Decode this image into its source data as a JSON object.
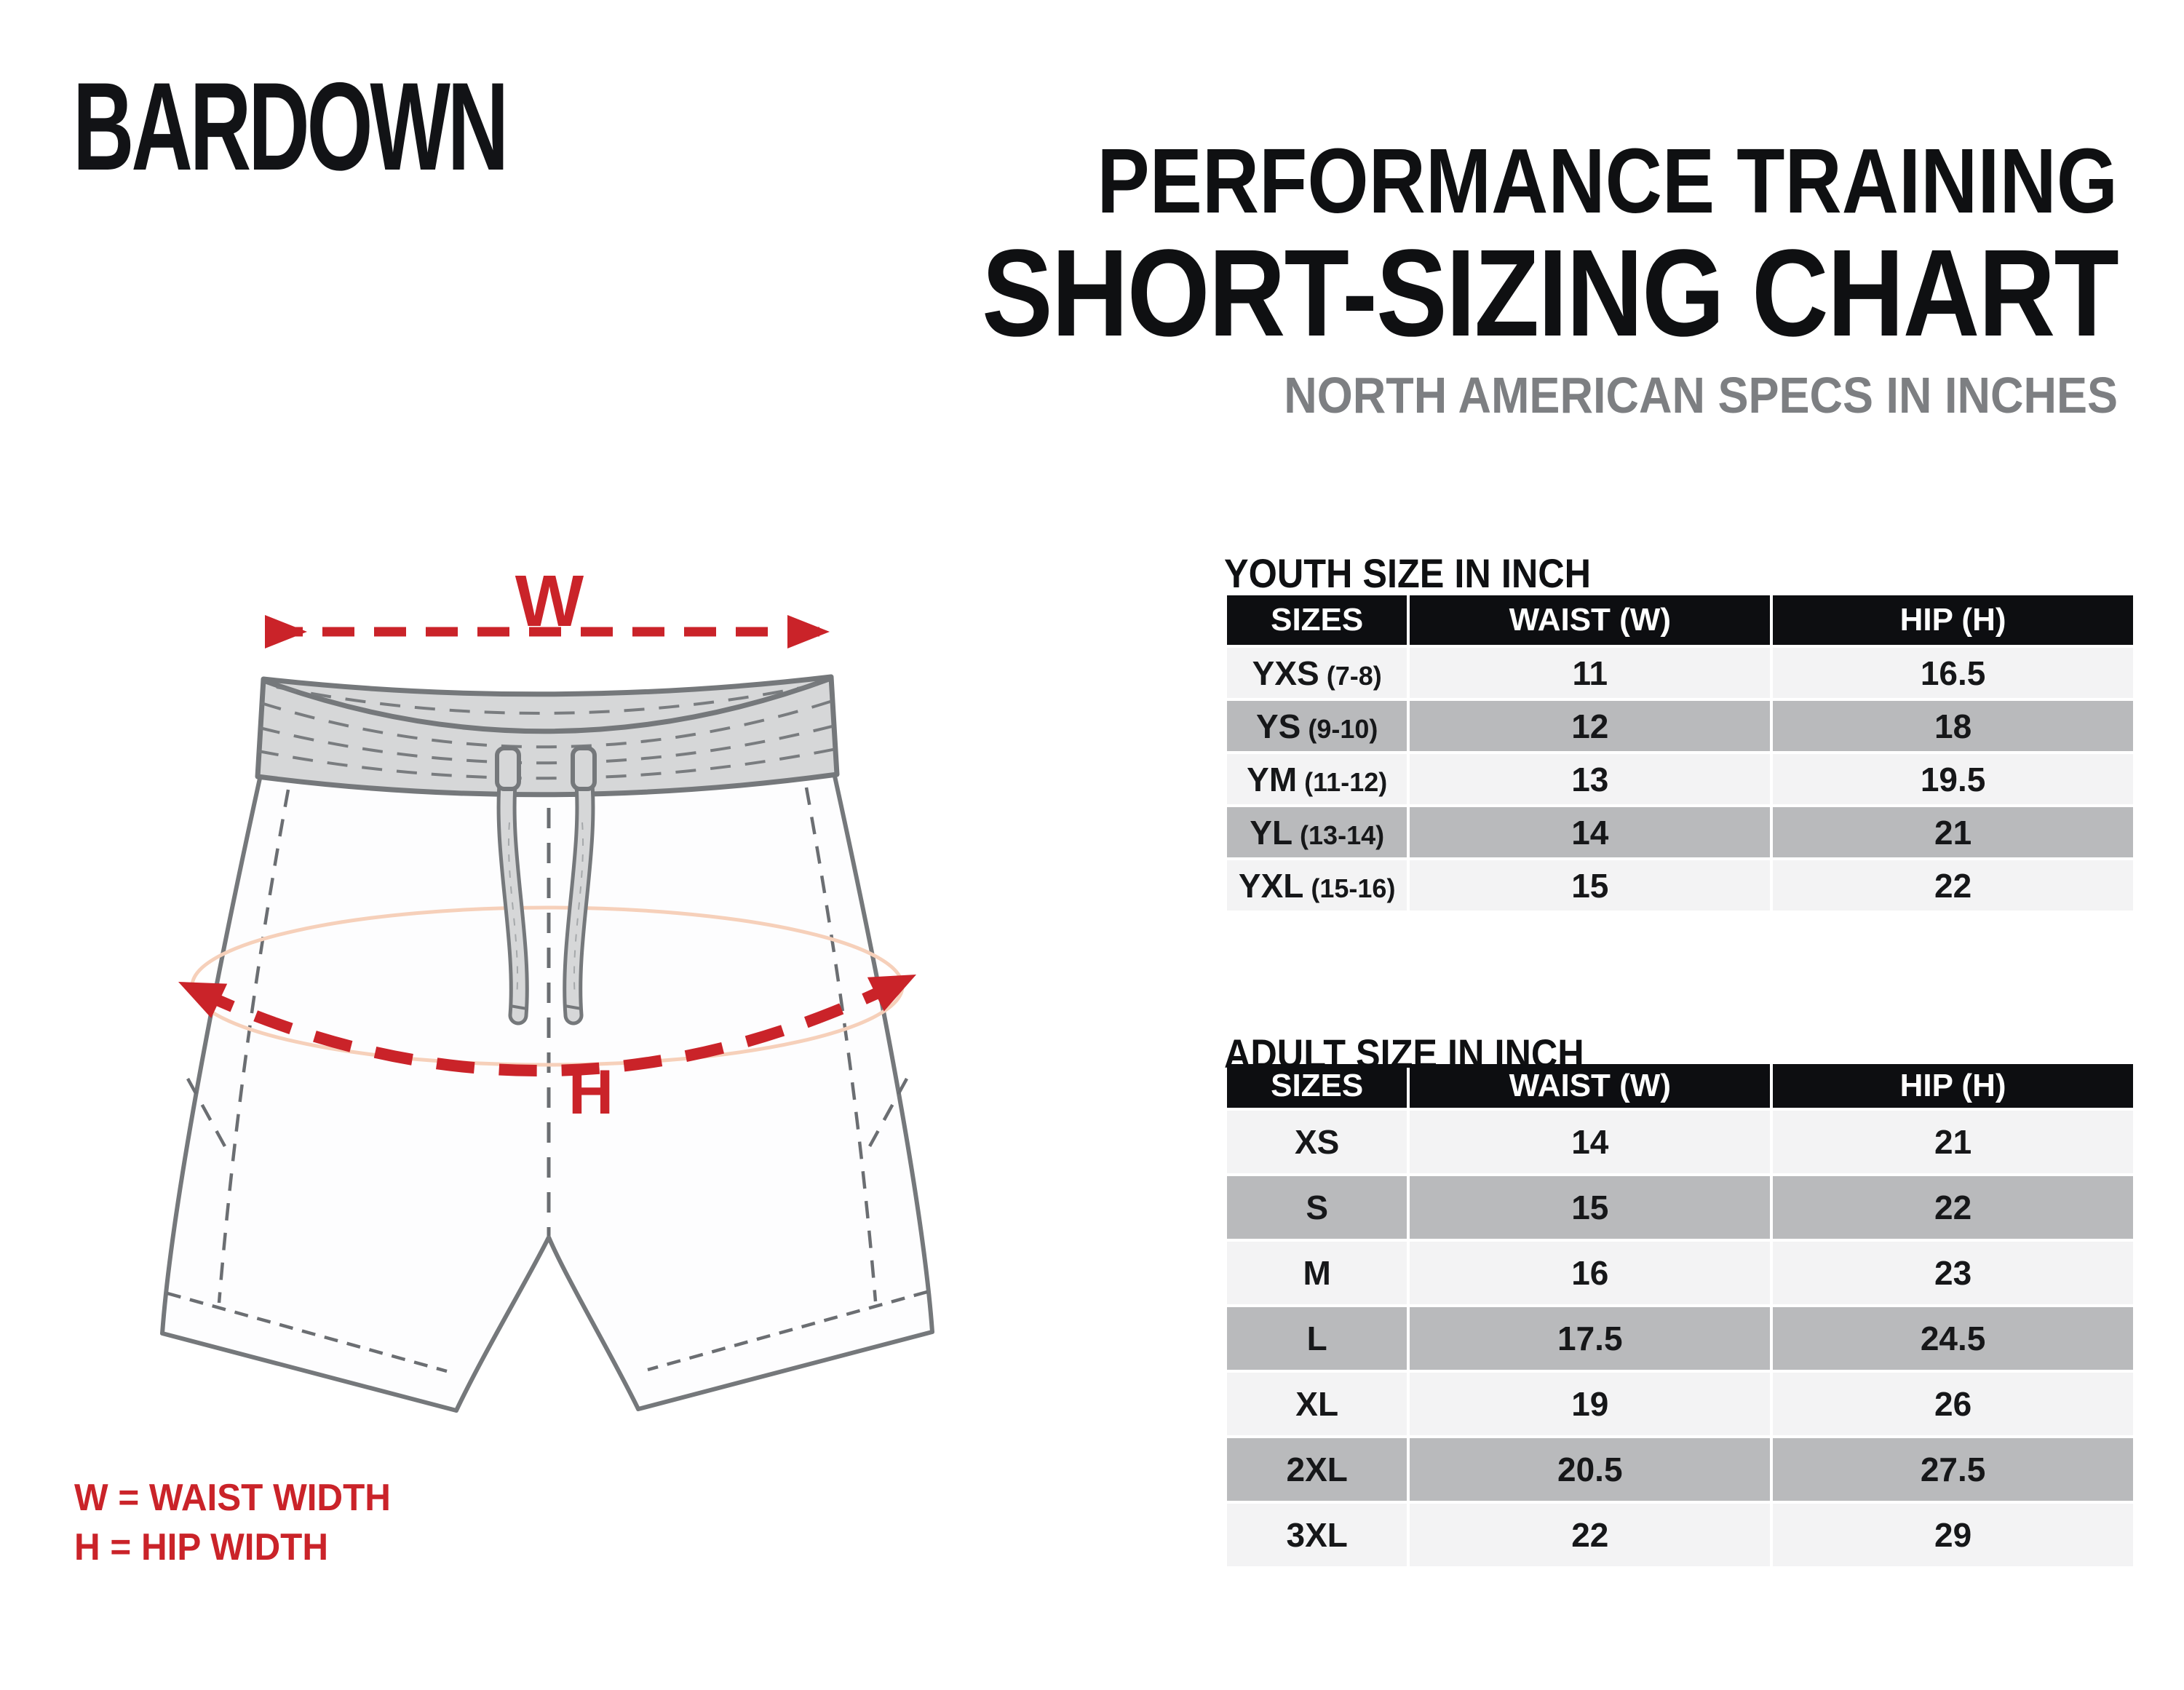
{
  "brand": {
    "logo": "BARDOWN"
  },
  "header": {
    "title_line1": "PERFORMANCE TRAINING",
    "title_line2": "SHORT-SIZING CHART",
    "subtitle": "NORTH AMERICAN SPECS IN INCHES"
  },
  "diagram": {
    "waist_label": "W",
    "hip_label": "H",
    "legend_w": "W = WAIST WIDTH",
    "legend_h": "H = HIP WIDTH"
  },
  "youth_table": {
    "title": "YOUTH SIZE IN INCH",
    "columns": [
      "SIZES",
      "WAIST (W)",
      "HIP (H)"
    ],
    "rows": [
      {
        "size": "YXS",
        "age": "(7-8)",
        "waist": "11",
        "hip": "16.5"
      },
      {
        "size": "YS",
        "age": "(9-10)",
        "waist": "12",
        "hip": "18"
      },
      {
        "size": "YM",
        "age": "(11-12)",
        "waist": "13",
        "hip": "19.5"
      },
      {
        "size": "YL",
        "age": "(13-14)",
        "waist": "14",
        "hip": "21"
      },
      {
        "size": "YXL",
        "age": "(15-16)",
        "waist": "15",
        "hip": "22"
      }
    ]
  },
  "adult_table": {
    "title": "ADULT SIZE IN INCH",
    "columns": [
      "SIZES",
      "WAIST (W)",
      "HIP (H)"
    ],
    "rows": [
      {
        "size": "XS",
        "waist": "14",
        "hip": "21"
      },
      {
        "size": "S",
        "waist": "15",
        "hip": "22"
      },
      {
        "size": "M",
        "waist": "16",
        "hip": "23"
      },
      {
        "size": "L",
        "waist": "17.5",
        "hip": "24.5"
      },
      {
        "size": "XL",
        "waist": "19",
        "hip": "26"
      },
      {
        "size": "2XL",
        "waist": "20.5",
        "hip": "27.5"
      },
      {
        "size": "3XL",
        "waist": "22",
        "hip": "29"
      }
    ]
  },
  "colors": {
    "accent_red": "#ca2329",
    "header_black": "#0d0e11",
    "row_light": "#f3f3f4",
    "row_gray": "#b9babc",
    "subtitle_gray": "#7d7f82",
    "outline_gray": "#75787b",
    "band_fill": "#d6d7d8",
    "hip_ellipse_peach": "#f6d0ba"
  }
}
